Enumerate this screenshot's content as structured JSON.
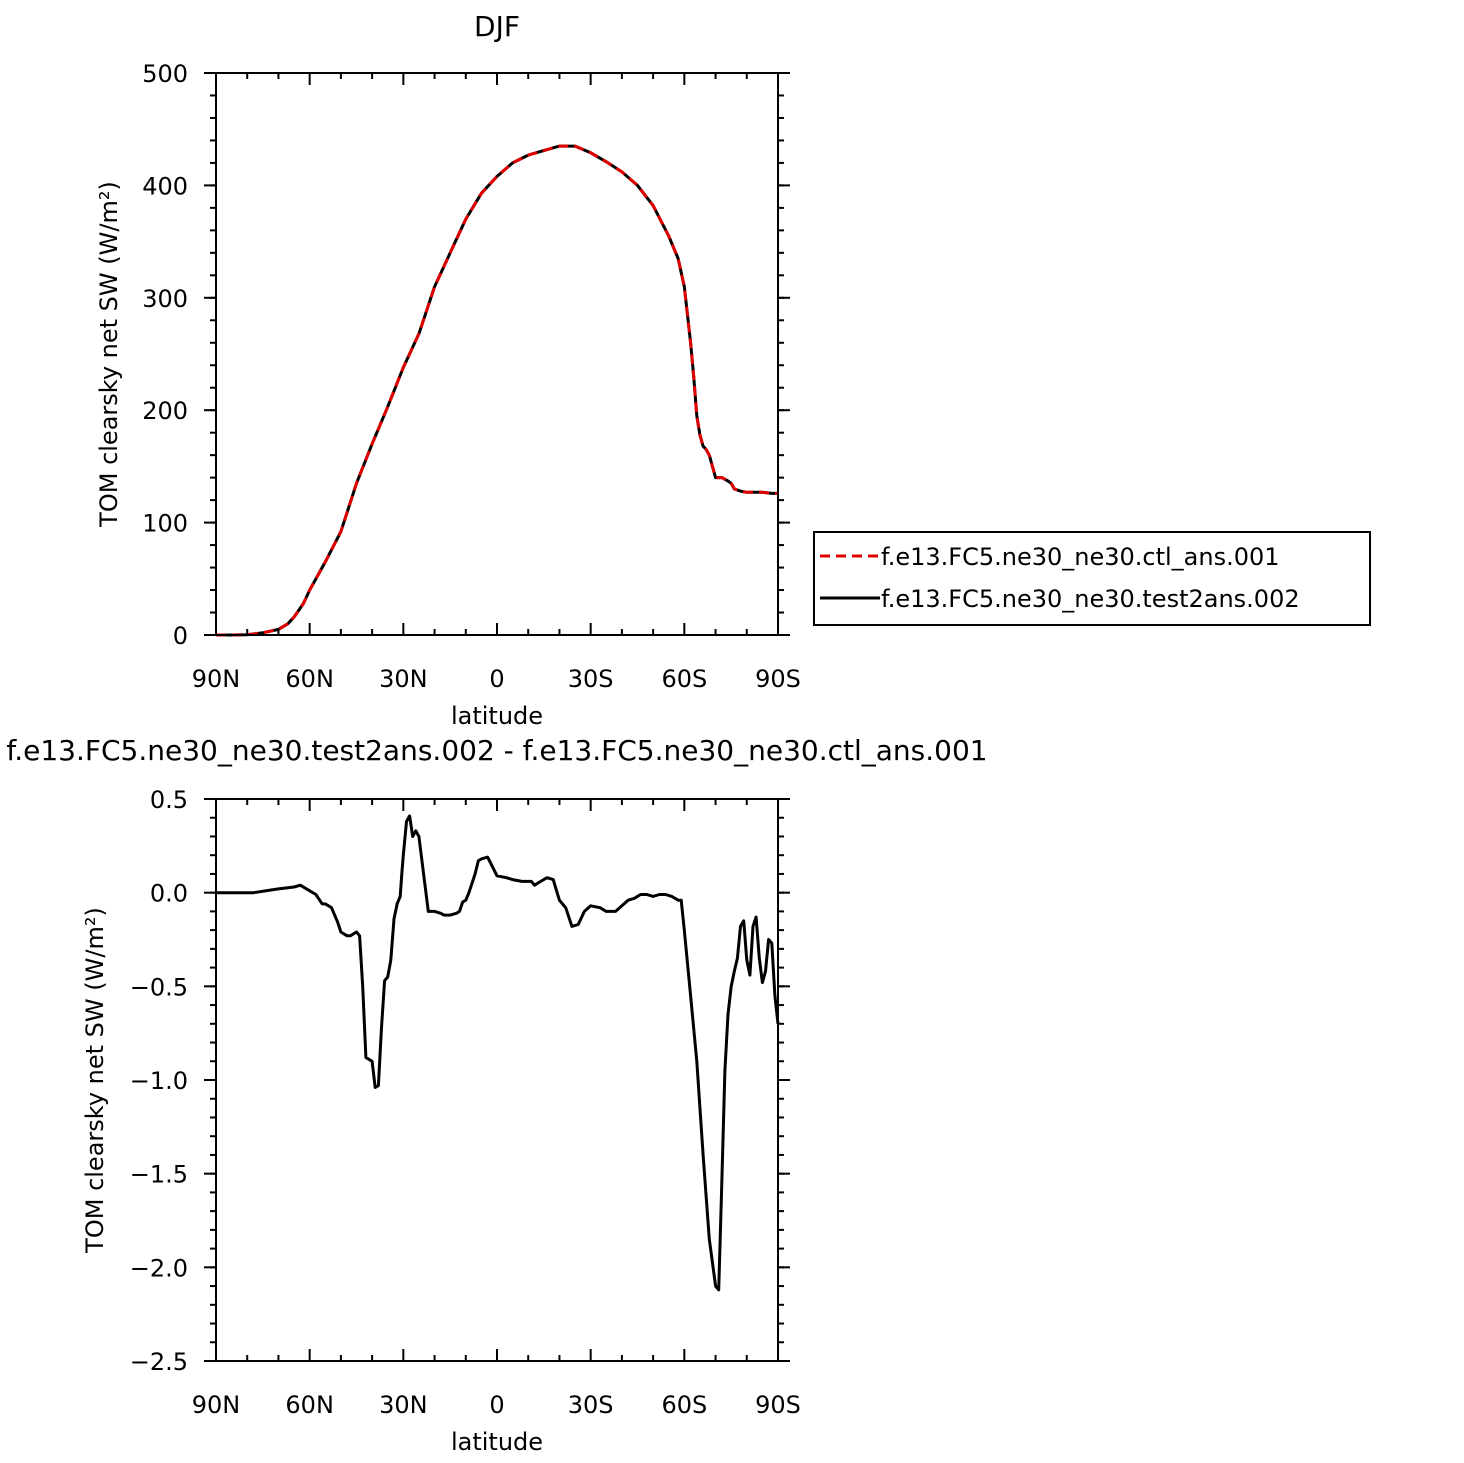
{
  "chart_data": [
    {
      "type": "line",
      "title": "DJF",
      "xlabel": "latitude",
      "ylabel": "TOM clearsky net SW (W/m²)",
      "xlim": [
        90,
        -90
      ],
      "ylim": [
        0,
        500
      ],
      "xticks": [
        90,
        60,
        30,
        0,
        -30,
        -60,
        -90
      ],
      "xtick_labels": [
        "90N",
        "60N",
        "30N",
        "0",
        "30S",
        "60S",
        "90S"
      ],
      "yticks": [
        0,
        100,
        200,
        300,
        400,
        500
      ],
      "ytick_labels": [
        "0",
        "100",
        "200",
        "300",
        "400",
        "500"
      ],
      "legend": {
        "position": "right",
        "entries": [
          {
            "label": "f.e13.FC5.ne30_ne30.ctl_ans.001",
            "color": "#e00000",
            "style": "dashed"
          },
          {
            "label": "f.e13.FC5.ne30_ne30.test2ans.002",
            "color": "#000000",
            "style": "solid"
          }
        ]
      },
      "x": [
        90,
        85,
        80,
        75,
        70,
        67,
        65,
        62,
        60,
        55,
        50,
        45,
        40,
        35,
        30,
        25,
        20,
        15,
        10,
        5,
        0,
        -5,
        -10,
        -15,
        -20,
        -25,
        -30,
        -35,
        -40,
        -45,
        -50,
        -55,
        -58,
        -60,
        -62,
        -63,
        -64,
        -65,
        -66,
        -67,
        -68,
        -70,
        -72,
        -74,
        -75,
        -76,
        -78,
        -80,
        -82,
        -85,
        -88,
        -90
      ],
      "series": [
        {
          "name": "f.e13.FC5.ne30_ne30.ctl_ans.001",
          "color": "#e00000",
          "style": "dashed",
          "values": [
            0,
            0,
            0.3,
            2,
            5,
            10,
            16,
            28,
            40,
            65,
            92,
            135,
            170,
            203,
            238,
            268,
            310,
            340,
            370,
            393,
            408,
            420,
            427,
            431,
            435,
            435,
            429,
            421,
            412,
            400,
            382,
            355,
            335,
            310,
            260,
            230,
            195,
            178,
            168,
            165,
            160,
            140,
            140,
            137,
            135,
            130,
            128,
            127,
            127,
            127,
            126,
            126
          ]
        },
        {
          "name": "f.e13.FC5.ne30_ne30.test2ans.002",
          "color": "#000000",
          "style": "solid",
          "values": [
            0,
            0,
            0.3,
            2,
            5,
            10,
            16,
            28,
            40,
            65,
            92,
            135,
            170,
            203,
            238,
            268,
            310,
            340,
            370,
            393,
            408,
            420,
            427,
            431,
            435,
            435,
            429,
            421,
            412,
            400,
            382,
            355,
            335,
            310,
            260,
            230,
            195,
            178,
            168,
            165,
            160,
            140,
            140,
            137,
            135,
            130,
            128,
            127,
            127,
            127,
            126,
            126
          ]
        }
      ]
    },
    {
      "type": "line",
      "title": "f.e13.FC5.ne30_ne30.test2ans.002 - f.e13.FC5.ne30_ne30.ctl_ans.001",
      "xlabel": "latitude",
      "ylabel": "TOM clearsky net SW (W/m²)",
      "xlim": [
        90,
        -90
      ],
      "ylim": [
        -2.5,
        0.5
      ],
      "xticks": [
        90,
        60,
        30,
        0,
        -30,
        -60,
        -90
      ],
      "xtick_labels": [
        "90N",
        "60N",
        "30N",
        "0",
        "30S",
        "60S",
        "90S"
      ],
      "yticks": [
        0.5,
        0.0,
        -0.5,
        -1.0,
        -1.5,
        -2.0,
        -2.5
      ],
      "ytick_labels": [
        "0.5",
        "0.0",
        "−0.5",
        "−1.0",
        "−1.5",
        "−2.0",
        "−2.5"
      ],
      "x": [
        90,
        78,
        70,
        65,
        63,
        60,
        58,
        56,
        55,
        53,
        51,
        50,
        48,
        47,
        46,
        45,
        44,
        43,
        42,
        40,
        39,
        38,
        37,
        36,
        35,
        34,
        33,
        32,
        31,
        30.5,
        30,
        29,
        28,
        27,
        26,
        25,
        22,
        20,
        18,
        17,
        15,
        13,
        12,
        11,
        10,
        9,
        8,
        7,
        6,
        5,
        3,
        0,
        -3,
        -5,
        -8,
        -11,
        -12,
        -14,
        -16,
        -18,
        -20,
        -22,
        -24,
        -26,
        -28,
        -30,
        -33,
        -35,
        -38,
        -40,
        -42,
        -44,
        -46,
        -48,
        -50,
        -52,
        -54,
        -56,
        -58,
        -59,
        -60,
        -62,
        -64,
        -66,
        -68,
        -70,
        -71,
        -72,
        -73,
        -74,
        -75,
        -76,
        -77,
        -78,
        -79,
        -80,
        -81,
        -82,
        -83,
        -84,
        -85,
        -86,
        -87,
        -88,
        -89,
        -90
      ],
      "series": [
        {
          "name": "",
          "color": "#000000",
          "style": "solid",
          "values": [
            0,
            0,
            0.02,
            0.03,
            0.04,
            0.01,
            -0.01,
            -0.06,
            -0.06,
            -0.08,
            -0.16,
            -0.21,
            -0.23,
            -0.23,
            -0.22,
            -0.21,
            -0.23,
            -0.5,
            -0.88,
            -0.9,
            -1.04,
            -1.03,
            -0.72,
            -0.47,
            -0.45,
            -0.36,
            -0.14,
            -0.06,
            -0.02,
            0.1,
            0.2,
            0.38,
            0.41,
            0.3,
            0.33,
            0.3,
            -0.1,
            -0.1,
            -0.11,
            -0.12,
            -0.12,
            -0.11,
            -0.1,
            -0.05,
            -0.04,
            0.0,
            0.05,
            0.1,
            0.17,
            0.18,
            0.19,
            0.09,
            0.08,
            0.07,
            0.06,
            0.06,
            0.04,
            0.06,
            0.08,
            0.07,
            -0.04,
            -0.08,
            -0.18,
            -0.17,
            -0.1,
            -0.07,
            -0.08,
            -0.1,
            -0.1,
            -0.07,
            -0.04,
            -0.03,
            -0.01,
            -0.01,
            -0.02,
            -0.01,
            -0.01,
            -0.02,
            -0.04,
            -0.04,
            -0.2,
            -0.55,
            -0.9,
            -1.4,
            -1.85,
            -2.1,
            -2.12,
            -1.55,
            -0.95,
            -0.65,
            -0.5,
            -0.42,
            -0.35,
            -0.18,
            -0.15,
            -0.36,
            -0.44,
            -0.18,
            -0.13,
            -0.35,
            -0.48,
            -0.42,
            -0.25,
            -0.27,
            -0.55,
            -0.7
          ]
        }
      ]
    }
  ]
}
